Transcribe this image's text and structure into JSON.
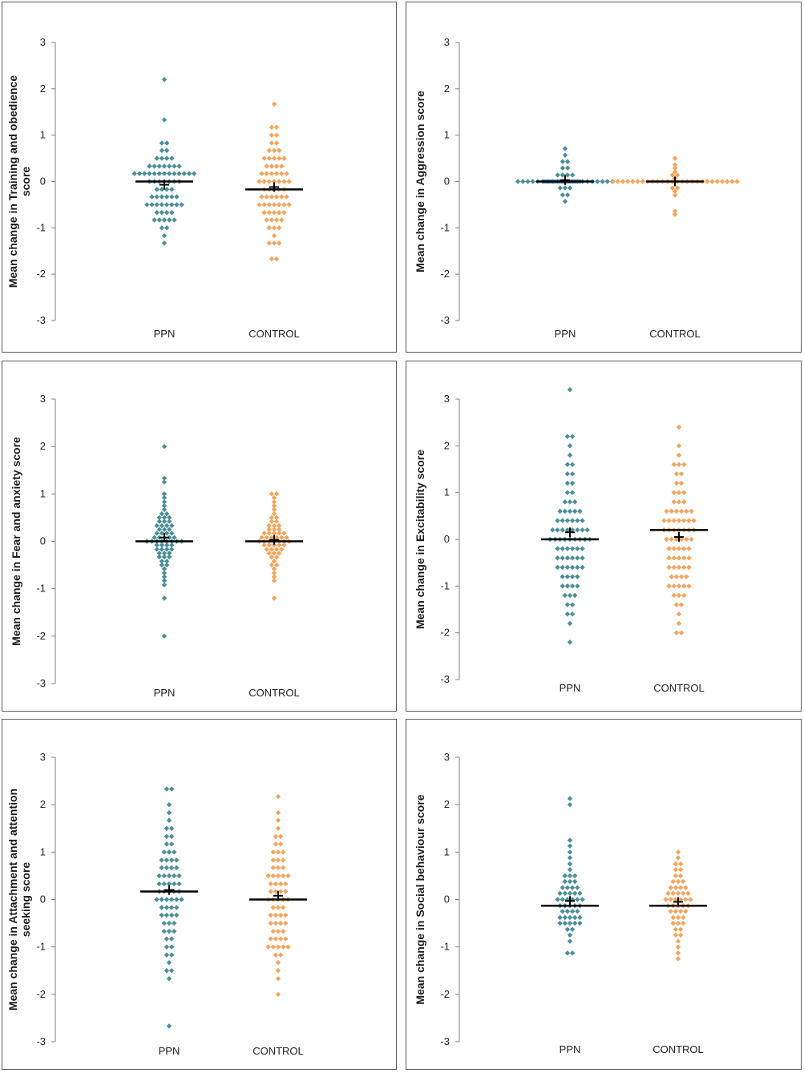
{
  "colors": {
    "ppn": "#4a8f97",
    "control": "#f5a45c",
    "mean_line": "#000000",
    "axis": "#7f7f7f"
  },
  "chart_data": [
    {
      "type": "scatter",
      "ylabel": [
        "Mean change in Training and obedience",
        "score"
      ],
      "categories": [
        "PPN",
        "CONTROL"
      ],
      "yticks": [
        "3",
        "2",
        "1",
        "0",
        "-1",
        "-2",
        "-3"
      ],
      "ylim": [
        -3,
        3
      ],
      "series": [
        {
          "name": "PPN",
          "color": "#4a8f97",
          "mean_line": 0.0,
          "mean_marker": -0.07,
          "values": [
            2.2,
            1.33,
            0.83,
            0.83,
            0.67,
            0.67,
            0.5,
            0.5,
            0.5,
            0.5,
            0.33,
            0.33,
            0.33,
            0.33,
            0.33,
            0.33,
            0.33,
            0.17,
            0.17,
            0.17,
            0.17,
            0.17,
            0.17,
            0.17,
            0.17,
            0.17,
            0.17,
            0.17,
            0.17,
            0.17,
            0.0,
            0.0,
            0.0,
            0.0,
            0.0,
            0.0,
            0.0,
            -0.17,
            -0.17,
            -0.17,
            -0.17,
            -0.33,
            -0.33,
            -0.33,
            -0.33,
            -0.33,
            -0.33,
            -0.5,
            -0.5,
            -0.5,
            -0.5,
            -0.5,
            -0.5,
            -0.5,
            -0.5,
            -0.67,
            -0.67,
            -0.67,
            -0.67,
            -0.83,
            -0.83,
            -0.83,
            -0.83,
            -0.83,
            -1.0,
            -1.0,
            -1.17,
            -1.33
          ]
        },
        {
          "name": "CONTROL",
          "color": "#f5a45c",
          "mean_line": -0.17,
          "mean_marker": -0.12,
          "values": [
            1.67,
            1.17,
            1.17,
            1.0,
            1.0,
            0.83,
            0.83,
            0.67,
            0.67,
            0.67,
            0.5,
            0.5,
            0.5,
            0.5,
            0.5,
            0.33,
            0.33,
            0.33,
            0.33,
            0.17,
            0.17,
            0.17,
            0.17,
            0.17,
            0.17,
            0.0,
            0.0,
            0.0,
            0.0,
            0.0,
            0.0,
            0.0,
            -0.17,
            -0.17,
            -0.17,
            -0.17,
            -0.17,
            -0.33,
            -0.33,
            -0.33,
            -0.33,
            -0.33,
            -0.33,
            -0.5,
            -0.5,
            -0.5,
            -0.5,
            -0.5,
            -0.5,
            -0.5,
            -0.67,
            -0.67,
            -0.67,
            -0.67,
            -0.67,
            -0.83,
            -0.83,
            -0.83,
            -0.83,
            -1.0,
            -1.0,
            -1.0,
            -1.17,
            -1.33,
            -1.33,
            -1.33,
            -1.67,
            -1.67
          ]
        }
      ]
    },
    {
      "type": "scatter",
      "ylabel": [
        "Mean change in Aggression score"
      ],
      "categories": [
        "PPN",
        "CONTROL"
      ],
      "yticks": [
        "3",
        "2",
        "1",
        "0",
        "-1",
        "-2",
        "-3"
      ],
      "ylim": [
        -3,
        3
      ],
      "series": [
        {
          "name": "PPN",
          "color": "#4a8f97",
          "mean_line": 0.0,
          "mean_marker": 0.03,
          "bar_color": "#4f81bd",
          "values": [
            0.71,
            0.57,
            0.43,
            0.43,
            0.29,
            0.29,
            0.14,
            0.14,
            0.14,
            0.14,
            0.0,
            0.0,
            0.0,
            0.0,
            0.0,
            0.0,
            0.0,
            0.0,
            0.0,
            0.0,
            0.0,
            0.0,
            0.0,
            0.0,
            0.0,
            0.0,
            0.0,
            0.0,
            0.0,
            0.0,
            -0.14,
            -0.14,
            -0.14,
            -0.29,
            -0.29,
            -0.43
          ]
        },
        {
          "name": "CONTROL",
          "color": "#f5a45c",
          "mean_line": 0.0,
          "mean_marker": 0.0,
          "values": [
            0.5,
            0.36,
            0.29,
            0.21,
            0.14,
            0.14,
            0.07,
            0.0,
            0.0,
            0.0,
            0.0,
            0.0,
            0.0,
            0.0,
            0.0,
            0.0,
            0.0,
            0.0,
            0.0,
            0.0,
            0.0,
            0.0,
            0.0,
            0.0,
            0.0,
            0.0,
            0.0,
            0.0,
            0.0,
            0.0,
            0.0,
            0.0,
            0.0,
            -0.14,
            -0.14,
            -0.21,
            -0.29,
            -0.64,
            -0.71
          ]
        }
      ]
    },
    {
      "type": "scatter",
      "ylabel": [
        "Mean change in Fear and anxiety score"
      ],
      "categories": [
        "PPN",
        "CONTROL"
      ],
      "yticks": [
        "3",
        "2",
        "1",
        "0",
        "-1",
        "-2",
        "-3"
      ],
      "ylim": [
        -3,
        3
      ],
      "series": [
        {
          "name": "PPN",
          "color": "#4a8f97",
          "mean_line": 0.0,
          "mean_marker": 0.08,
          "values": [
            2.0,
            1.33,
            1.25,
            1.0,
            0.92,
            0.83,
            0.75,
            0.67,
            0.58,
            0.58,
            0.5,
            0.5,
            0.5,
            0.42,
            0.42,
            0.42,
            0.33,
            0.33,
            0.33,
            0.33,
            0.25,
            0.25,
            0.25,
            0.17,
            0.17,
            0.17,
            0.17,
            0.08,
            0.08,
            0.08,
            0.08,
            0.08,
            0.0,
            0.0,
            0.0,
            0.0,
            0.0,
            0.0,
            0.0,
            0.0,
            -0.08,
            -0.08,
            -0.08,
            -0.08,
            -0.17,
            -0.17,
            -0.17,
            -0.17,
            -0.25,
            -0.25,
            -0.25,
            -0.33,
            -0.33,
            -0.33,
            -0.42,
            -0.42,
            -0.5,
            -0.5,
            -0.58,
            -0.67,
            -0.75,
            -0.83,
            -0.92,
            -1.2,
            -2.0
          ]
        },
        {
          "name": "CONTROL",
          "color": "#f5a45c",
          "mean_line": 0.0,
          "mean_marker": 0.03,
          "values": [
            1.0,
            1.0,
            0.92,
            0.83,
            0.75,
            0.67,
            0.58,
            0.5,
            0.5,
            0.42,
            0.42,
            0.33,
            0.33,
            0.33,
            0.25,
            0.25,
            0.25,
            0.17,
            0.17,
            0.17,
            0.17,
            0.17,
            0.08,
            0.08,
            0.08,
            0.08,
            0.08,
            0.08,
            0.0,
            0.0,
            0.0,
            0.0,
            0.0,
            0.0,
            0.0,
            -0.08,
            -0.08,
            -0.08,
            -0.08,
            -0.08,
            -0.17,
            -0.17,
            -0.17,
            -0.17,
            -0.25,
            -0.25,
            -0.25,
            -0.33,
            -0.33,
            -0.42,
            -0.5,
            -0.5,
            -0.58,
            -0.67,
            -0.75,
            -0.83,
            -1.2
          ]
        }
      ]
    },
    {
      "type": "scatter",
      "ylabel": [
        "Mean change in Excitability score"
      ],
      "categories": [
        "PPN",
        "CONTROL"
      ],
      "yticks": [
        "3",
        "2",
        "1",
        "0",
        "-1",
        "-2",
        "-3"
      ],
      "ylim": [
        -3,
        3
      ],
      "series": [
        {
          "name": "PPN",
          "color": "#4a8f97",
          "mean_line": 0.0,
          "mean_marker": 0.15,
          "values": [
            3.2,
            2.2,
            2.2,
            2.0,
            1.8,
            1.6,
            1.6,
            1.4,
            1.4,
            1.2,
            1.2,
            1.0,
            1.0,
            0.8,
            0.8,
            0.8,
            0.6,
            0.6,
            0.6,
            0.6,
            0.6,
            0.4,
            0.4,
            0.4,
            0.4,
            0.4,
            0.4,
            0.2,
            0.2,
            0.2,
            0.2,
            0.2,
            0.2,
            0.2,
            0.2,
            0.0,
            0.0,
            0.0,
            0.0,
            0.0,
            0.0,
            0.0,
            0.0,
            0.0,
            -0.2,
            -0.2,
            -0.2,
            -0.2,
            -0.2,
            -0.2,
            -0.4,
            -0.4,
            -0.4,
            -0.4,
            -0.4,
            -0.4,
            -0.6,
            -0.6,
            -0.6,
            -0.6,
            -0.6,
            -0.6,
            -0.8,
            -0.8,
            -0.8,
            -0.8,
            -1.0,
            -1.0,
            -1.0,
            -1.0,
            -1.2,
            -1.2,
            -1.2,
            -1.4,
            -1.4,
            -1.6,
            -1.6,
            -1.8,
            -2.2
          ]
        },
        {
          "name": "CONTROL",
          "color": "#f5a45c",
          "mean_line": 0.2,
          "mean_marker": 0.05,
          "values": [
            2.4,
            2.0,
            1.8,
            1.6,
            1.6,
            1.6,
            1.4,
            1.4,
            1.2,
            1.2,
            1.0,
            1.0,
            1.0,
            0.8,
            0.8,
            0.8,
            0.6,
            0.6,
            0.6,
            0.6,
            0.6,
            0.6,
            0.4,
            0.4,
            0.4,
            0.4,
            0.4,
            0.4,
            0.4,
            0.2,
            0.2,
            0.2,
            0.2,
            0.2,
            0.2,
            0.2,
            0.0,
            0.0,
            0.0,
            0.0,
            0.0,
            0.0,
            -0.2,
            -0.2,
            -0.2,
            -0.2,
            -0.2,
            -0.4,
            -0.4,
            -0.4,
            -0.4,
            -0.4,
            -0.6,
            -0.6,
            -0.6,
            -0.6,
            -0.6,
            -0.8,
            -0.8,
            -0.8,
            -0.8,
            -1.0,
            -1.0,
            -1.0,
            -1.0,
            -1.0,
            -1.2,
            -1.2,
            -1.2,
            -1.4,
            -1.4,
            -1.6,
            -1.8,
            -2.0,
            -2.0
          ]
        }
      ]
    },
    {
      "type": "scatter",
      "ylabel": [
        "Mean change in Attachment and attention",
        "seeking score"
      ],
      "categories": [
        "PPN",
        "CONTROL"
      ],
      "yticks": [
        "3",
        "2",
        "1",
        "0",
        "-1",
        "-2",
        "-3"
      ],
      "ylim": [
        -3,
        3
      ],
      "series": [
        {
          "name": "PPN",
          "color": "#4a8f97",
          "mean_line": 0.17,
          "mean_marker": 0.2,
          "values": [
            2.33,
            2.33,
            2.0,
            1.83,
            1.67,
            1.5,
            1.5,
            1.33,
            1.33,
            1.17,
            1.17,
            1.0,
            1.0,
            1.0,
            0.83,
            0.83,
            0.83,
            0.83,
            0.67,
            0.67,
            0.67,
            0.67,
            0.5,
            0.5,
            0.5,
            0.5,
            0.5,
            0.33,
            0.33,
            0.33,
            0.33,
            0.33,
            0.17,
            0.17,
            0.17,
            0.17,
            0.17,
            0.0,
            0.0,
            0.0,
            0.0,
            0.0,
            0.0,
            -0.17,
            -0.17,
            -0.17,
            -0.17,
            -0.33,
            -0.33,
            -0.33,
            -0.33,
            -0.5,
            -0.5,
            -0.5,
            -0.67,
            -0.67,
            -0.67,
            -0.83,
            -0.83,
            -1.0,
            -1.0,
            -1.17,
            -1.17,
            -1.33,
            -1.5,
            -1.5,
            -1.67,
            -2.67
          ]
        },
        {
          "name": "CONTROL",
          "color": "#f5a45c",
          "mean_line": 0.0,
          "mean_marker": 0.08,
          "values": [
            2.17,
            1.83,
            1.67,
            1.5,
            1.33,
            1.33,
            1.17,
            1.17,
            1.0,
            1.0,
            1.0,
            0.83,
            0.83,
            0.83,
            0.67,
            0.67,
            0.67,
            0.5,
            0.5,
            0.5,
            0.5,
            0.5,
            0.33,
            0.33,
            0.33,
            0.33,
            0.17,
            0.17,
            0.17,
            0.17,
            0.0,
            0.0,
            0.0,
            0.0,
            0.0,
            -0.17,
            -0.17,
            -0.17,
            -0.33,
            -0.33,
            -0.33,
            -0.33,
            -0.5,
            -0.5,
            -0.5,
            -0.5,
            -0.67,
            -0.67,
            -0.67,
            -0.83,
            -0.83,
            -0.83,
            -0.83,
            -1.0,
            -1.0,
            -1.0,
            -1.0,
            -1.0,
            -1.17,
            -1.17,
            -1.33,
            -1.5,
            -1.67,
            -2.0
          ]
        }
      ]
    },
    {
      "type": "scatter",
      "ylabel": [
        "Mean change in Social behaviour score"
      ],
      "categories": [
        "PPN",
        "CONTROL"
      ],
      "yticks": [
        "3",
        "2",
        "1",
        "0",
        "-1",
        "-2",
        "-3"
      ],
      "ylim": [
        -3,
        3
      ],
      "series": [
        {
          "name": "PPN",
          "color": "#4a8f97",
          "mean_line": -0.13,
          "mean_marker": -0.03,
          "values": [
            2.13,
            2.0,
            1.25,
            1.13,
            1.0,
            0.88,
            0.75,
            0.63,
            0.5,
            0.5,
            0.5,
            0.38,
            0.38,
            0.38,
            0.25,
            0.25,
            0.25,
            0.25,
            0.13,
            0.13,
            0.13,
            0.13,
            0.13,
            0.0,
            0.0,
            0.0,
            0.0,
            0.0,
            0.0,
            -0.13,
            -0.13,
            -0.13,
            -0.13,
            -0.13,
            -0.25,
            -0.25,
            -0.25,
            -0.25,
            -0.38,
            -0.38,
            -0.38,
            -0.38,
            -0.38,
            -0.5,
            -0.5,
            -0.5,
            -0.5,
            -0.5,
            -0.63,
            -0.63,
            -0.75,
            -0.88,
            -1.13,
            -1.13
          ]
        },
        {
          "name": "CONTROL",
          "color": "#f5a45c",
          "mean_line": -0.13,
          "mean_marker": -0.05,
          "values": [
            1.0,
            0.88,
            0.75,
            0.75,
            0.63,
            0.63,
            0.5,
            0.5,
            0.38,
            0.38,
            0.38,
            0.25,
            0.25,
            0.25,
            0.25,
            0.13,
            0.13,
            0.13,
            0.13,
            0.13,
            0.0,
            0.0,
            0.0,
            0.0,
            0.0,
            0.0,
            -0.13,
            -0.13,
            -0.13,
            -0.13,
            -0.13,
            -0.25,
            -0.25,
            -0.25,
            -0.25,
            -0.38,
            -0.38,
            -0.38,
            -0.5,
            -0.5,
            -0.5,
            -0.63,
            -0.63,
            -0.75,
            -0.75,
            -0.88,
            -1.0,
            -1.13,
            -1.25
          ]
        }
      ]
    }
  ]
}
